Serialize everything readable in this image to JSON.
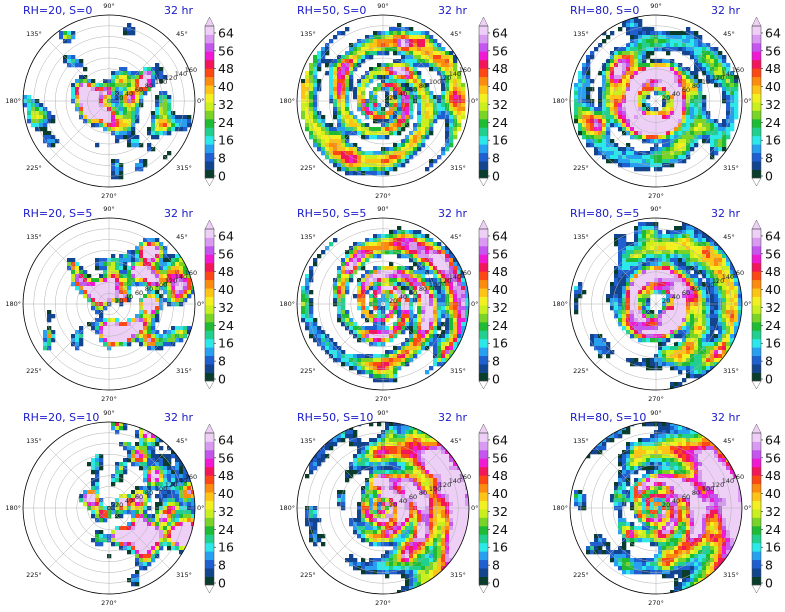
{
  "chart_data": {
    "type": "polar-contourf",
    "rows": 3,
    "cols": 3,
    "colorbar": {
      "ticks": [
        "0",
        "8",
        "16",
        "24",
        "32",
        "40",
        "48",
        "56",
        "64"
      ],
      "levels": [
        0,
        4,
        8,
        12,
        16,
        20,
        24,
        28,
        32,
        36,
        40,
        44,
        48,
        52,
        56,
        60,
        64,
        68
      ],
      "colors": [
        "#0a3d2b",
        "#13458f",
        "#1f5fd0",
        "#28a0ef",
        "#2ce8e8",
        "#21d08f",
        "#1fbb35",
        "#7ad428",
        "#c9ef1e",
        "#f2f022",
        "#fdc317",
        "#fc8c10",
        "#fb4814",
        "#f2165a",
        "#f01ad2",
        "#c455ef",
        "#d99bf2",
        "#eed0f7"
      ],
      "extend": "both"
    },
    "polar_axis": {
      "angle_labels": [
        "90°",
        "45°",
        "0°",
        "315°",
        "270°",
        "225°",
        "180°",
        "135°"
      ],
      "radial_labels": [
        "20",
        "40",
        "60",
        "80",
        "100",
        "120",
        "140",
        "160"
      ],
      "radial_label_angle_deg": 22
    },
    "panels": [
      {
        "title": "RH=20, S=0",
        "time": "32 hr",
        "pattern": "scattered",
        "rh": 20,
        "shear": 0,
        "cover": 0.38,
        "intensity": 0.55,
        "core": 0.1,
        "show_ring_labels": true
      },
      {
        "title": "RH=50, S=0",
        "time": "32 hr",
        "pattern": "spiral",
        "rh": 50,
        "shear": 0,
        "cover": 0.62,
        "intensity": 0.7,
        "core": 0.15,
        "show_ring_labels": true
      },
      {
        "title": "RH=80, S=0",
        "time": "32 hr",
        "pattern": "ring",
        "rh": 80,
        "shear": 0,
        "cover": 0.7,
        "intensity": 0.85,
        "core": 0.2,
        "show_ring_labels": true
      },
      {
        "title": "RH=20, S=5",
        "time": "32 hr",
        "pattern": "scattered",
        "rh": 20,
        "shear": 5,
        "cover": 0.3,
        "intensity": 0.75,
        "core": 0.05,
        "show_ring_labels": true
      },
      {
        "title": "RH=50, S=5",
        "time": "32 hr",
        "pattern": "spiral",
        "rh": 50,
        "shear": 5,
        "cover": 0.58,
        "intensity": 0.8,
        "core": 0.1,
        "show_ring_labels": true
      },
      {
        "title": "RH=80, S=5",
        "time": "32 hr",
        "pattern": "ring",
        "rh": 80,
        "shear": 5,
        "cover": 0.68,
        "intensity": 0.85,
        "core": 0.15,
        "show_ring_labels": true
      },
      {
        "title": "RH=20, S=10",
        "time": "32 hr",
        "pattern": "scattered",
        "rh": 20,
        "shear": 10,
        "cover": 0.28,
        "intensity": 0.85,
        "core": 0.02,
        "show_ring_labels": true
      },
      {
        "title": "RH=50, S=10",
        "time": "32 hr",
        "pattern": "shear",
        "rh": 50,
        "shear": 10,
        "cover": 0.55,
        "intensity": 0.9,
        "core": 0.05,
        "show_ring_labels": true
      },
      {
        "title": "RH=80, S=10",
        "time": "32 hr",
        "pattern": "shear",
        "rh": 80,
        "shear": 10,
        "cover": 0.58,
        "intensity": 0.9,
        "core": 0.08,
        "show_ring_labels": true
      }
    ],
    "colors": {
      "title_text": "#1a1acc",
      "axis": "#000000",
      "grid": "#b0b0b0"
    }
  }
}
